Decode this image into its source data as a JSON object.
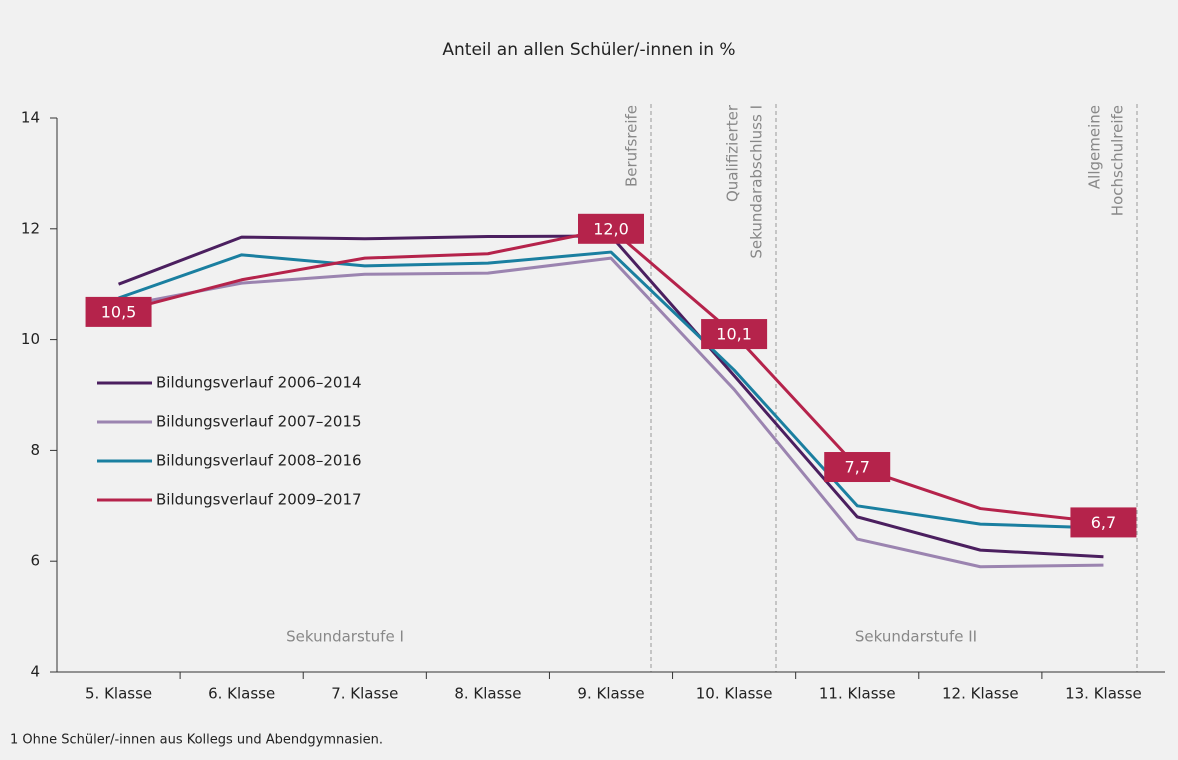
{
  "chart_data": {
    "type": "line",
    "title": "Anteil an allen Schüler/-innen in %",
    "categories": [
      "5. Klasse",
      "6. Klasse",
      "7. Klasse",
      "8. Klasse",
      "9. Klasse",
      "10. Klasse",
      "11. Klasse",
      "12. Klasse",
      "13. Klasse"
    ],
    "series": [
      {
        "name": "Bildungsverlauf 2006–2014",
        "color": "#4b1f5f",
        "values": [
          11.0,
          11.85,
          11.82,
          11.86,
          11.87,
          9.35,
          6.8,
          6.2,
          6.08
        ]
      },
      {
        "name": "Bildungsverlauf 2007–2015",
        "color": "#9b84b0",
        "values": [
          10.6,
          11.02,
          11.18,
          11.2,
          11.47,
          9.1,
          6.4,
          5.9,
          5.93
        ]
      },
      {
        "name": "Bildungsverlauf 2008–2016",
        "color": "#1a7fa0",
        "values": [
          10.75,
          11.53,
          11.33,
          11.38,
          11.58,
          9.45,
          7.0,
          6.67,
          6.6
        ]
      },
      {
        "name": "Bildungsverlauf 2009–2017",
        "color": "#b5234b",
        "values": [
          10.5,
          11.08,
          11.47,
          11.55,
          12.0,
          10.1,
          7.7,
          6.95,
          6.7
        ],
        "value_labels": [
          "10,5",
          null,
          null,
          null,
          "12,0",
          "10,1",
          "7,7",
          null,
          "6,7"
        ]
      }
    ],
    "ylim": [
      4,
      14
    ],
    "yticks": [
      4,
      6,
      8,
      10,
      12,
      14
    ],
    "annotations": [
      [
        "Berufsreife"
      ],
      [
        "Qualifizierter",
        "Sekundarabschluss I"
      ],
      [
        "Allgemeine",
        "Hochschulreife"
      ]
    ],
    "region_labels": [
      "Sekundarstufe I",
      "Sekundarstufe II"
    ],
    "footnote": "1 Ohne Schüler/-innen aus Kollegs und Abendgymnasien.",
    "legend": "left"
  }
}
